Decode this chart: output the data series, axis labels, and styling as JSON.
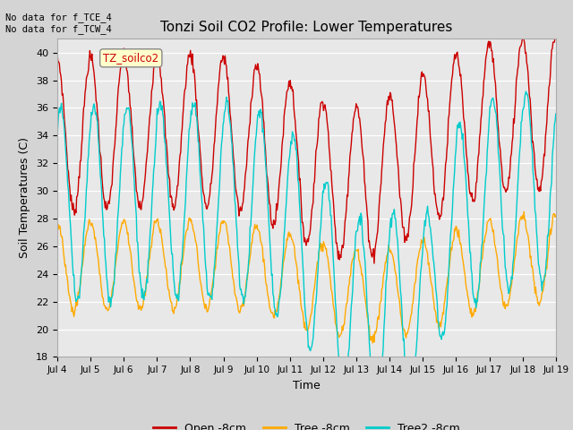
{
  "title": "Tonzi Soil CO2 Profile: Lower Temperatures",
  "xlabel": "Time",
  "ylabel": "Soil Temperatures (C)",
  "ylim": [
    18,
    41
  ],
  "yticks": [
    18,
    20,
    22,
    24,
    26,
    28,
    30,
    32,
    34,
    36,
    38,
    40
  ],
  "xtick_labels": [
    "Jul 4",
    "Jul 5",
    "Jul 6",
    "Jul 7",
    "Jul 8",
    "Jul 9",
    "Jul 10",
    "Jul 11",
    "Jul 12",
    "Jul 13",
    "Jul 14",
    "Jul 15",
    "Jul 16",
    "Jul 17",
    "Jul 18",
    "Jul 19"
  ],
  "annotation_text": "No data for f_TCE_4\nNo data for f_TCW_4",
  "legend_box_text": "TZ_soilco2",
  "colors": {
    "open": "#cc0000",
    "tree": "#ffaa00",
    "tree2": "#00cccc"
  },
  "legend_labels": [
    "Open -8cm",
    "Tree -8cm",
    "Tree2 -8cm"
  ],
  "fig_bg": "#d4d4d4",
  "plot_bg": "#e8e8e8"
}
